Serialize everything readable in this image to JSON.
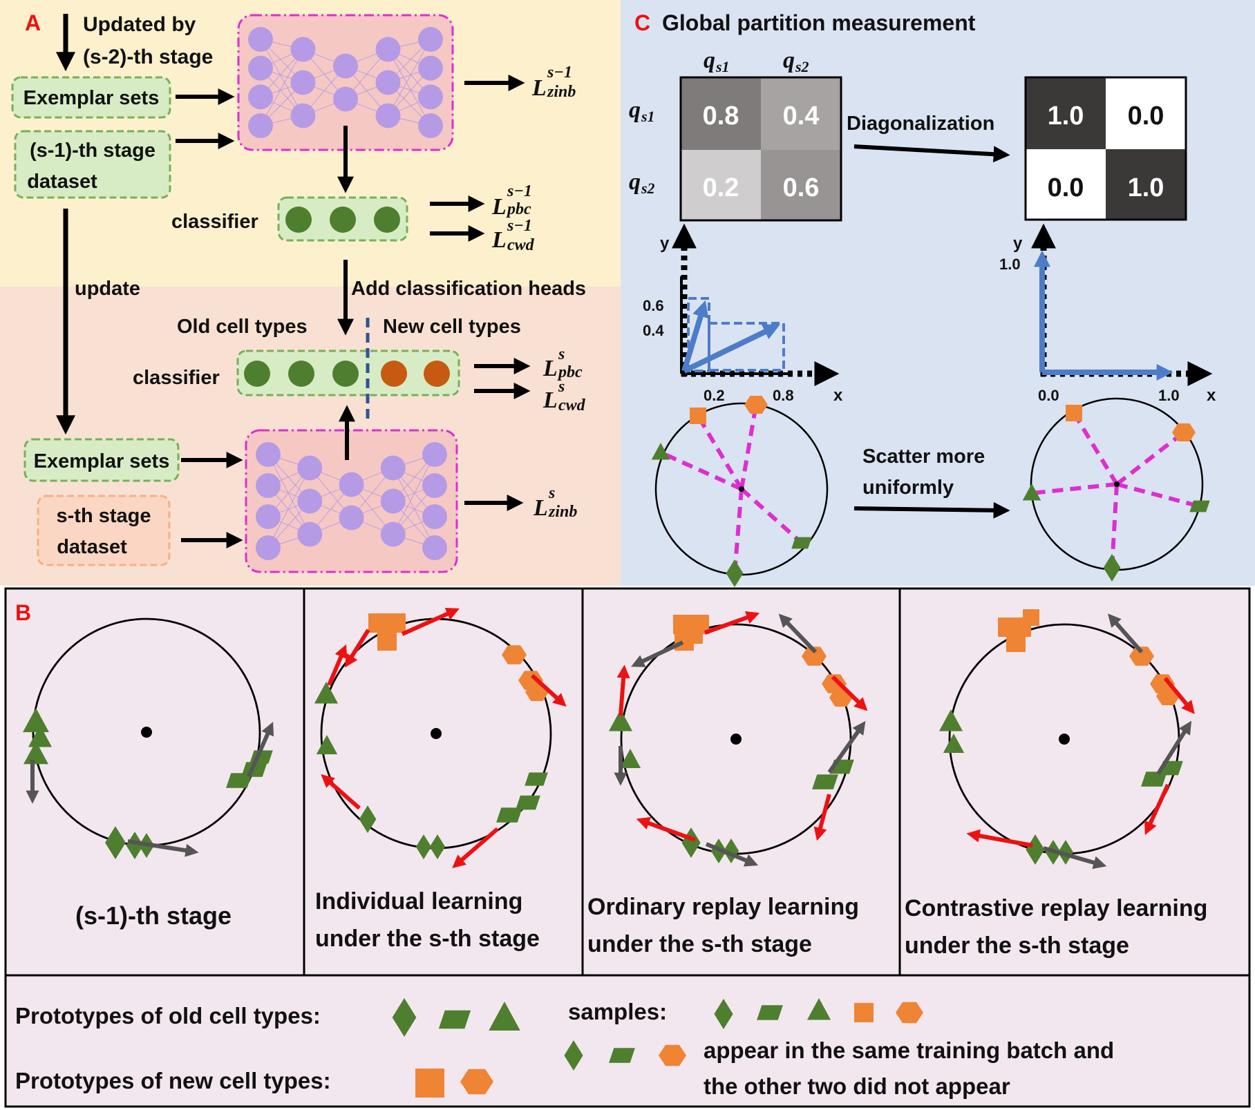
{
  "panel_a": {
    "letter": "A",
    "updated_by_line1": "Updated by",
    "updated_by_line2": "(s-2)-th stage",
    "exemplar_sets_top": "Exemplar sets",
    "prev_dataset_line1": "(s-1)-th stage",
    "prev_dataset_line2": "dataset",
    "classifier_top": "classifier",
    "update": "update",
    "add_heads": "Add classification heads",
    "old_cell_types": "Old cell types",
    "new_cell_types": "New cell types",
    "classifier_bottom": "classifier",
    "exemplar_sets_bottom": "Exemplar sets",
    "cur_dataset_line1": "s-th stage",
    "cur_dataset_line2": "dataset",
    "loss_L": "L",
    "loss_zinb": "zinb",
    "loss_pbc": "pbc",
    "loss_cwd": "cwd",
    "sup_prev": "s−1",
    "sup_cur": "s"
  },
  "panel_c": {
    "letter": "C",
    "title": "Global partition measurement",
    "q": "q",
    "sub_s1": "s1",
    "sub_s2": "s2",
    "matrix_before": [
      [
        "0.8",
        "0.4"
      ],
      [
        "0.2",
        "0.6"
      ]
    ],
    "matrix_after": [
      [
        "1.0",
        "0.0"
      ],
      [
        "0.0",
        "1.0"
      ]
    ],
    "diagonalization": "Diagonalization",
    "axis_x": "x",
    "axis_y": "y",
    "left_ticks": {
      "y1": "0.6",
      "y2": "0.4",
      "x1": "0.2",
      "x2": "0.8"
    },
    "right_ticks": {
      "y": "1.0",
      "x0": "0.0",
      "x1": "1.0"
    },
    "scatter_line1": "Scatter more",
    "scatter_line2": "uniformly"
  },
  "panel_b": {
    "letter": "B",
    "captions": [
      [
        "(s-1)-th stage"
      ],
      [
        "Individual learning",
        "under the s-th stage"
      ],
      [
        "Ordinary replay learning",
        "under the s-th stage"
      ],
      [
        "Contrastive replay learning",
        "under the s-th stage"
      ]
    ]
  },
  "legend": {
    "old_prototypes": "Prototypes of old cell types:",
    "new_prototypes": "Prototypes of new cell types:",
    "samples": "samples:",
    "batch_line1": "appear in the same training batch and",
    "batch_line2": "the other two did not appear"
  },
  "colors": {
    "green": "#4e7f2f",
    "orange": "#ee8434",
    "red": "#ee1111",
    "gray_arrow": "#555555",
    "neuron": "#b59be6",
    "magenta": "#dd2ed1",
    "blue": "#4d7cc9",
    "bg_top": "#fdf0cc",
    "bg_bottom": "#f8e1d2",
    "bg_c": "#dae3f1",
    "bg_b": "#f3e7ef"
  }
}
